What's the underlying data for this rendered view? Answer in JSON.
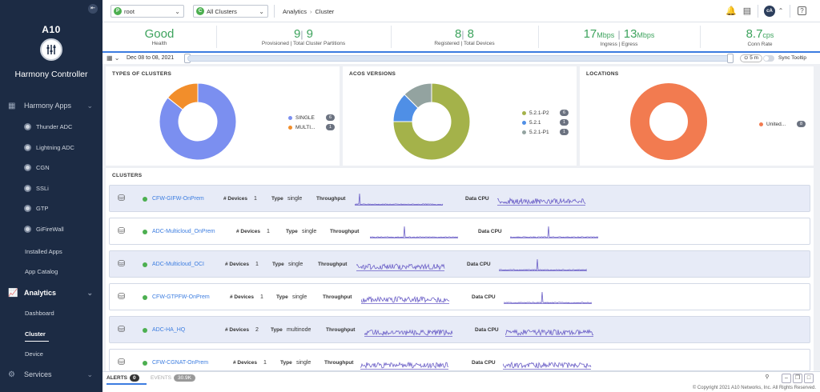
{
  "sidebar": {
    "logo": "A10",
    "title": "Harmony Controller",
    "sections": [
      {
        "label": "Harmony Apps"
      },
      {
        "label": "Analytics"
      },
      {
        "label": "Services"
      }
    ],
    "apps": [
      "Thunder ADC",
      "Lightning ADC",
      "CGN",
      "SSLi",
      "GTP",
      "GiFireWall"
    ],
    "links": [
      "Installed Apps",
      "App Catalog"
    ],
    "analytics_items": [
      "Dashboard",
      "Cluster",
      "Device"
    ]
  },
  "topbar": {
    "provider": "root",
    "provider_badge": "P",
    "cluster": "All Clusters",
    "cluster_badge": "C",
    "breadcrumb": [
      "Analytics",
      "Cluster"
    ],
    "avatar": "cA",
    "help": "?"
  },
  "kpi": {
    "health": {
      "value": "Good",
      "label": "Health"
    },
    "partitions": {
      "a": "9",
      "b": "9",
      "label": "Provisioned | Total Cluster Partitions"
    },
    "devices": {
      "a": "8",
      "b": "8",
      "label": "Registered | Total Devices"
    },
    "throughput": {
      "a": "17",
      "a_unit": "Mbps",
      "b": "13",
      "b_unit": "Mbps",
      "label": "Ingress | Egress"
    },
    "conn": {
      "value": "8.7",
      "unit": "cps",
      "label": "Conn Rate"
    }
  },
  "timebar": {
    "range": "Dec 08 to 08, 2021",
    "interval": "5 m",
    "sync_label": "Sync Tooltip"
  },
  "panels": {
    "types_title": "TYPES OF CLUSTERS",
    "acos_title": "ACOS VERSIONS",
    "locations_title": "LOCATIONS",
    "clusters_title": "CLUSTERS"
  },
  "chart_data": [
    {
      "type": "pie",
      "title": "TYPES OF CLUSTERS",
      "categories": [
        "SINGLE",
        "MULTI..."
      ],
      "values": [
        6,
        1
      ],
      "colors": [
        "#7b8ff0",
        "#f28e2b"
      ]
    },
    {
      "type": "pie",
      "title": "ACOS VERSIONS",
      "categories": [
        "5.2.1-P2",
        "5.2.1",
        "5.2.1-P1"
      ],
      "values": [
        6,
        1,
        1
      ],
      "colors": [
        "#a4b24a",
        "#4f8fe6",
        "#93a3a0"
      ]
    },
    {
      "type": "pie",
      "title": "LOCATIONS",
      "categories": [
        "United..."
      ],
      "values": [
        8
      ],
      "colors": [
        "#f27b50"
      ]
    }
  ],
  "clusters": {
    "labels": {
      "devices": "# Devices",
      "type": "Type",
      "throughput": "Throughput",
      "cpu": "Data CPU"
    },
    "rows": [
      {
        "name": "CFW-GIFW-OnPrem",
        "devices": "1",
        "type": "single"
      },
      {
        "name": "ADC-Multicloud_OnPrem",
        "devices": "1",
        "type": "single"
      },
      {
        "name": "ADC-Multicloud_OCI",
        "devices": "1",
        "type": "single"
      },
      {
        "name": "CFW-GTPFW-OnPrem",
        "devices": "1",
        "type": "single"
      },
      {
        "name": "ADC-HA_HQ",
        "devices": "2",
        "type": "multinode"
      },
      {
        "name": "CFW-CGNAT-OnPrem",
        "devices": "1",
        "type": "single"
      }
    ]
  },
  "bottombar": {
    "alerts_label": "ALERTS",
    "alerts_count": "0",
    "events_label": "EVENTS",
    "events_count": "30.9K",
    "copyright": "© Copyright 2021 A10 Networks, Inc. All Rights Reserved."
  },
  "colors": {
    "accent": "#3c7de0",
    "ok": "#3da35d",
    "spark": "#6b5fc7"
  }
}
